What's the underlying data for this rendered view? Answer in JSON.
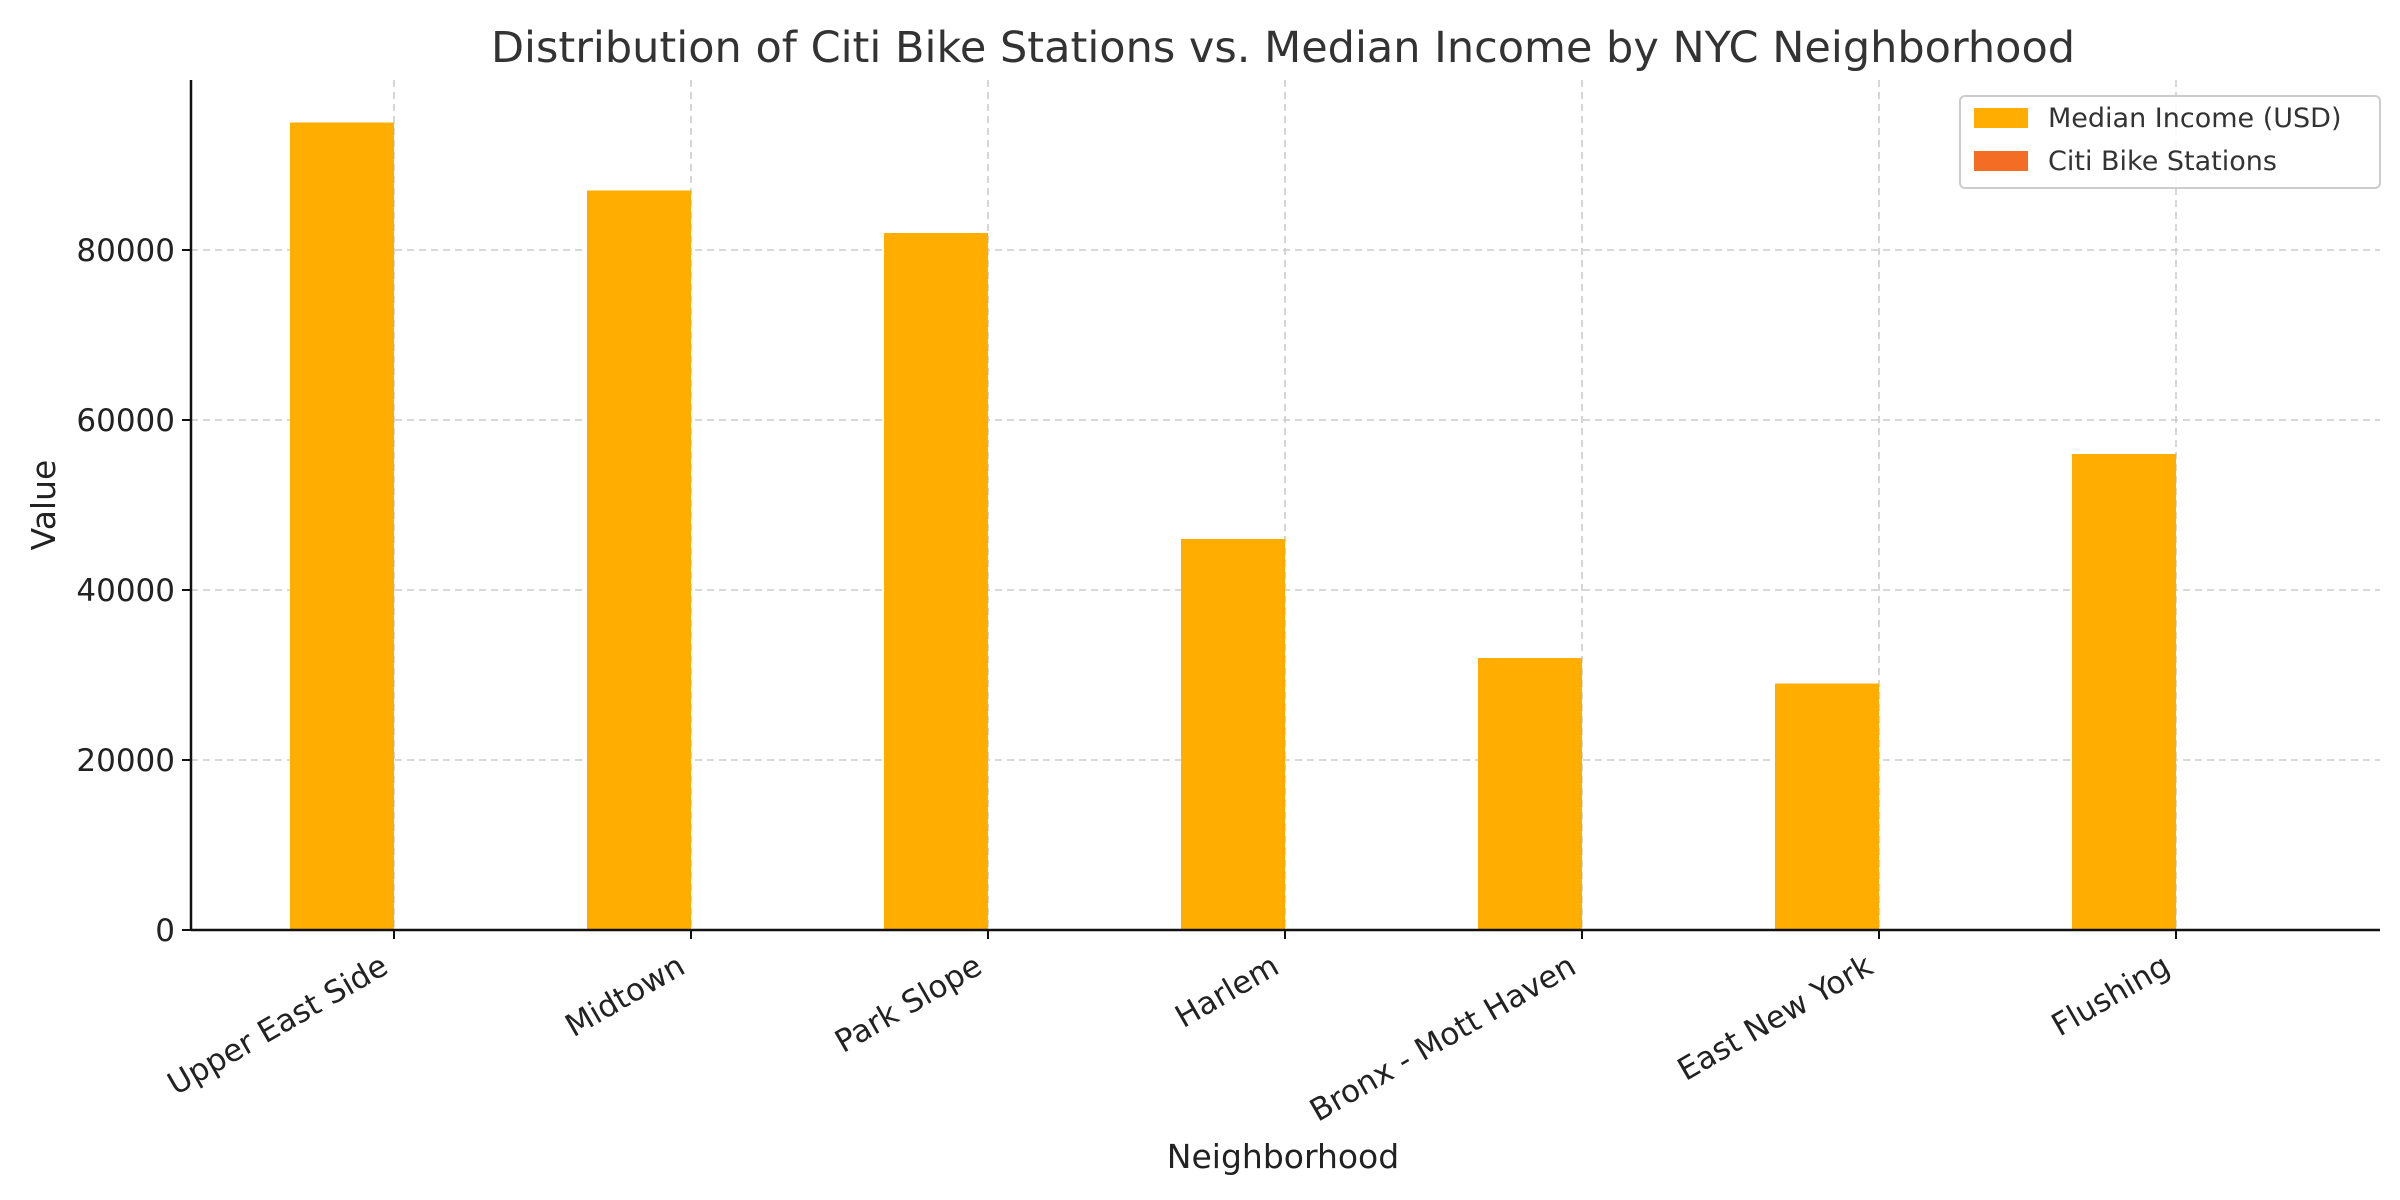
{
  "chart_data": {
    "type": "bar",
    "title": "Distribution of Citi Bike Stations vs. Median Income by NYC Neighborhood",
    "xlabel": "Neighborhood",
    "ylabel": "Value",
    "categories": [
      "Upper East Side",
      "Midtown",
      "Park Slope",
      "Harlem",
      "Bronx - Mott Haven",
      "East New York",
      "Flushing"
    ],
    "series": [
      {
        "name": "Median Income (USD)",
        "color": "#FFAE00",
        "values": [
          95000,
          87000,
          82000,
          46000,
          32000,
          29000,
          56000
        ]
      },
      {
        "name": "Citi Bike Stations",
        "color": "#F46D25",
        "values": [
          0,
          0,
          0,
          0,
          0,
          0,
          0
        ]
      }
    ],
    "yticks": [
      0,
      20000,
      40000,
      60000,
      80000
    ],
    "ylim": [
      0,
      100000
    ],
    "grid": true,
    "legend_position": "top-right"
  }
}
